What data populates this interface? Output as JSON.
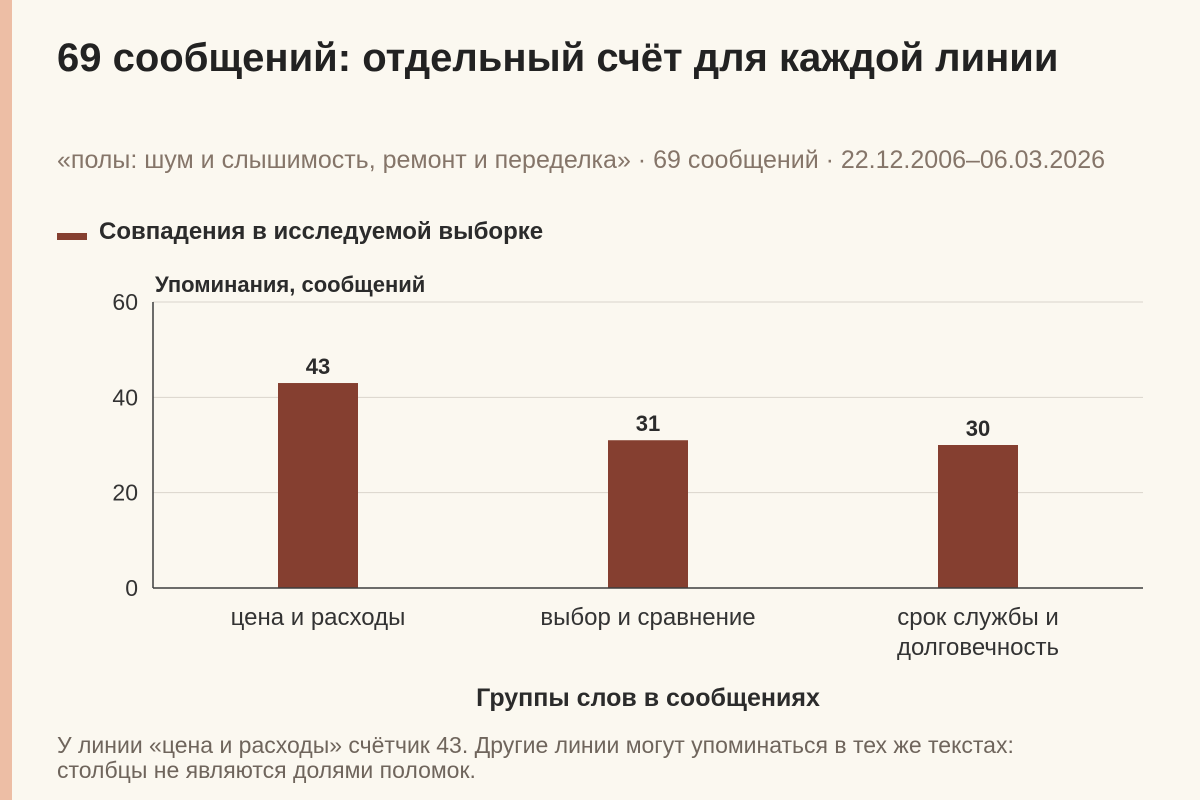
{
  "chart_data": {
    "type": "bar",
    "title": "69 сообщений: отдельный счёт для каждой линии",
    "subtitle": "«полы: шум и слышимость, ремонт и переделка» · 69 сообщений · 22.12.2006–06.03.2026",
    "categories": [
      "цена и расходы",
      "выбор и сравнение",
      "срок службы и долговечность"
    ],
    "series": [
      {
        "name": "Совпадения в исследуемой выборке",
        "values": [
          43,
          31,
          30
        ],
        "color": "#853F30"
      }
    ],
    "xlabel": "Группы слов в сообщениях",
    "ylabel": "Упоминания, сообщений",
    "ylim": [
      0,
      60
    ],
    "yticks": [
      0,
      20,
      40,
      60
    ],
    "grid": true,
    "legend": "top-left",
    "data_labels": true,
    "note": "У линии «цена и расходы» счётчик 43. Другие линии могут упоминаться в тех же текстах:\nстолбцы не являются долями поломок."
  },
  "colors": {
    "background": "#FBF8F0",
    "accent_stripe": "#EDBEA5",
    "gridline": "#DAD5CC",
    "axis": "#3D3D3D"
  }
}
